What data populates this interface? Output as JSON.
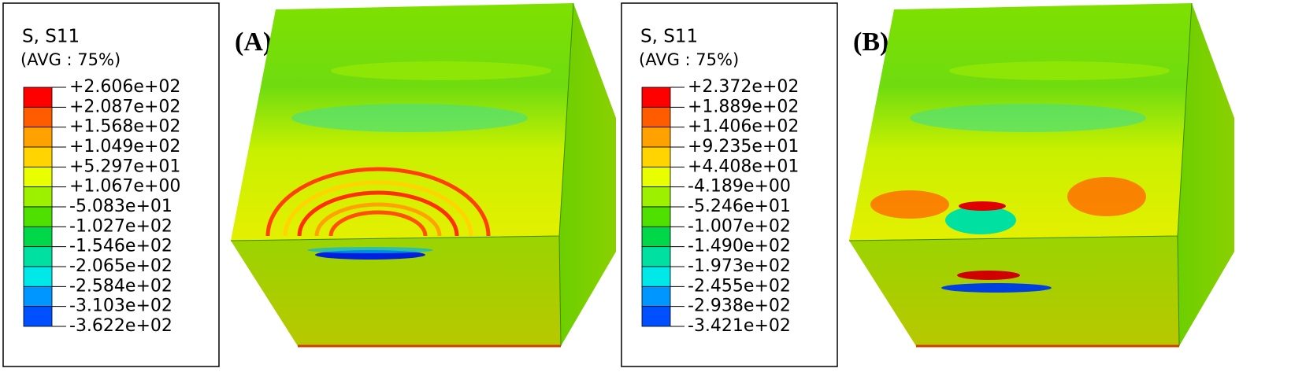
{
  "panels": [
    {
      "label": "(A)",
      "legend": {
        "title": "S, S11",
        "subtitle": "(AVG : 75%)",
        "values": [
          "+2.606e+02",
          "+2.087e+02",
          "+1.568e+02",
          "+1.049e+02",
          "+5.297e+01",
          "+1.067e+00",
          "-5.083e+01",
          "-1.027e+02",
          "-1.546e+02",
          "-2.065e+02",
          "-2.584e+02",
          "-3.103e+02",
          "-3.622e+02"
        ],
        "colors": [
          "#ff0000",
          "#ff5c00",
          "#ffa200",
          "#ffd400",
          "#e8ff00",
          "#9cf000",
          "#4fe000",
          "#00d84a",
          "#00e0a0",
          "#00e8e8",
          "#0096ff",
          "#0050ff",
          "#0000ff"
        ]
      }
    },
    {
      "label": "(B)",
      "legend": {
        "title": "S, S11",
        "subtitle": "(AVG : 75%)",
        "values": [
          "+2.372e+02",
          "+1.889e+02",
          "+1.406e+02",
          "+9.235e+01",
          "+4.408e+01",
          "-4.189e+00",
          "-5.246e+01",
          "-1.007e+02",
          "-1.490e+02",
          "-1.973e+02",
          "-2.455e+02",
          "-2.938e+02",
          "-3.421e+02"
        ],
        "colors": [
          "#ff0000",
          "#ff5c00",
          "#ffa200",
          "#ffd400",
          "#e8ff00",
          "#9cf000",
          "#4fe000",
          "#00d84a",
          "#00e0a0",
          "#00e8e8",
          "#0096ff",
          "#0050ff",
          "#0000ff"
        ]
      }
    }
  ]
}
